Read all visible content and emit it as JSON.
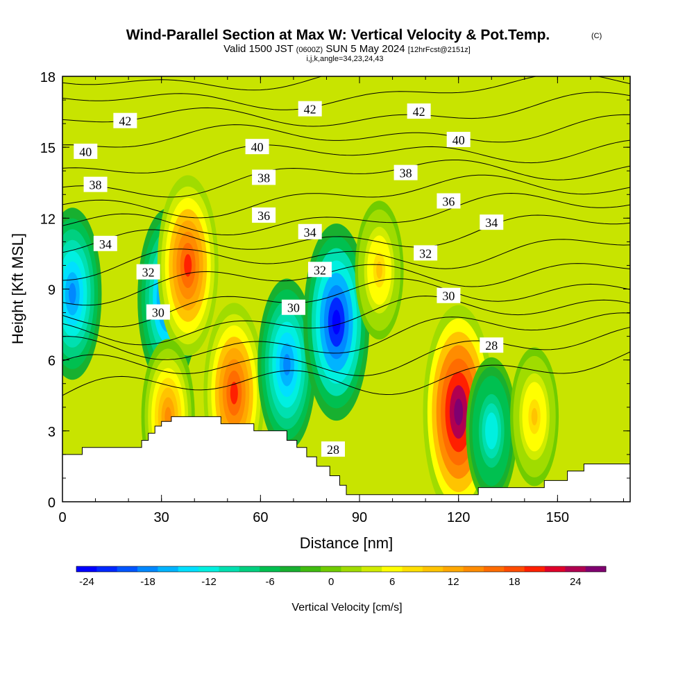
{
  "chart_data": {
    "type": "heatmap",
    "title": "Wind-Parallel Section at Max W: Vertical Velocity & Pot.Temp.",
    "copyright_mark": "(C)",
    "subtitle": {
      "valid": "Valid 1500 JST",
      "utc": "(0600Z)",
      "date": "SUN 5 May 2024",
      "forecast": "[12hrFcst@2151z]"
    },
    "section_info": "i,j,k,angle=34,23,24,43",
    "xlabel": "Distance [nm]",
    "ylabel": "Height [Kft MSL]",
    "xlim": [
      0,
      172
    ],
    "ylim": [
      0,
      18
    ],
    "x_ticks": [
      "0",
      "30",
      "60",
      "90",
      "120",
      "150"
    ],
    "y_ticks": [
      "0",
      "3",
      "6",
      "9",
      "12",
      "15",
      "18"
    ],
    "colorbar": {
      "label": "Vertical Velocity [cm/s]",
      "tick_labels": [
        "-24",
        "-18",
        "-12",
        "-6",
        "0",
        "6",
        "12",
        "18",
        "24"
      ],
      "levels_min": -24,
      "levels_max": 28,
      "colors": [
        "#0000ff",
        "#0028ff",
        "#0055ff",
        "#0088ff",
        "#00b4ff",
        "#00e0ff",
        "#00f0e0",
        "#00e0b0",
        "#00d080",
        "#00c050",
        "#18b030",
        "#40bc10",
        "#70cc00",
        "#a0dc00",
        "#d0ec00",
        "#ffff00",
        "#ffe000",
        "#ffc400",
        "#ffa800",
        "#ff8c00",
        "#ff6c00",
        "#ff4c00",
        "#ff2000",
        "#e0002a",
        "#b00050",
        "#800070"
      ]
    },
    "terrain_profile": [
      [
        0,
        2.0
      ],
      [
        6,
        2.0
      ],
      [
        6,
        2.3
      ],
      [
        24,
        2.3
      ],
      [
        24,
        2.6
      ],
      [
        26,
        2.6
      ],
      [
        26,
        2.9
      ],
      [
        28,
        2.9
      ],
      [
        28,
        3.2
      ],
      [
        30,
        3.2
      ],
      [
        30,
        3.4
      ],
      [
        33,
        3.4
      ],
      [
        33,
        3.6
      ],
      [
        48,
        3.6
      ],
      [
        48,
        3.3
      ],
      [
        58,
        3.3
      ],
      [
        58,
        3.0
      ],
      [
        68,
        3.0
      ],
      [
        68,
        2.6
      ],
      [
        71,
        2.6
      ],
      [
        71,
        2.3
      ],
      [
        74,
        2.3
      ],
      [
        74,
        1.9
      ],
      [
        77,
        1.9
      ],
      [
        77,
        1.5
      ],
      [
        81,
        1.5
      ],
      [
        81,
        1.1
      ],
      [
        84,
        1.1
      ],
      [
        84,
        0.7
      ],
      [
        86,
        0.7
      ],
      [
        86,
        0.3
      ],
      [
        126,
        0.3
      ],
      [
        126,
        0.6
      ],
      [
        146,
        0.6
      ],
      [
        146,
        0.9
      ],
      [
        153,
        0.9
      ],
      [
        153,
        1.3
      ],
      [
        158,
        1.3
      ],
      [
        158,
        1.6
      ],
      [
        172,
        1.6
      ]
    ],
    "vertical_velocity_features": [
      {
        "x": 3,
        "y": 8.8,
        "w_cm_s": -18
      },
      {
        "x": 32,
        "y": 8.6,
        "w_cm_s": -20
      },
      {
        "x": 38,
        "y": 10.0,
        "w_cm_s": 20
      },
      {
        "x": 52,
        "y": 4.6,
        "w_cm_s": 20
      },
      {
        "x": 68,
        "y": 5.8,
        "w_cm_s": -18
      },
      {
        "x": 83,
        "y": 7.6,
        "w_cm_s": -24
      },
      {
        "x": 96,
        "y": 9.8,
        "w_cm_s": 10
      },
      {
        "x": 120,
        "y": 3.8,
        "w_cm_s": 28
      },
      {
        "x": 130,
        "y": 3.0,
        "w_cm_s": -12
      },
      {
        "x": 143,
        "y": 3.6,
        "w_cm_s": 10
      },
      {
        "x": 32,
        "y": 3.6,
        "w_cm_s": 14
      }
    ],
    "theta_contours_kelvin_offset": [
      28,
      29,
      30,
      31,
      32,
      33,
      34,
      35,
      36,
      37,
      38,
      39,
      40,
      41,
      42,
      43
    ],
    "contour_labels": [
      {
        "text": "42",
        "x": 19,
        "y": 16.1
      },
      {
        "text": "42",
        "x": 75,
        "y": 16.6
      },
      {
        "text": "42",
        "x": 108,
        "y": 16.5
      },
      {
        "text": "40",
        "x": 7,
        "y": 14.8
      },
      {
        "text": "40",
        "x": 59,
        "y": 15.0
      },
      {
        "text": "40",
        "x": 120,
        "y": 15.3
      },
      {
        "text": "38",
        "x": 10,
        "y": 13.4
      },
      {
        "text": "38",
        "x": 61,
        "y": 13.7
      },
      {
        "text": "38",
        "x": 104,
        "y": 13.9
      },
      {
        "text": "36",
        "x": 61,
        "y": 12.1
      },
      {
        "text": "36",
        "x": 117,
        "y": 12.7
      },
      {
        "text": "34",
        "x": 13,
        "y": 10.9
      },
      {
        "text": "34",
        "x": 75,
        "y": 11.4
      },
      {
        "text": "34",
        "x": 130,
        "y": 11.8
      },
      {
        "text": "32",
        "x": 26,
        "y": 9.7
      },
      {
        "text": "32",
        "x": 78,
        "y": 9.8
      },
      {
        "text": "32",
        "x": 110,
        "y": 10.5
      },
      {
        "text": "30",
        "x": 29,
        "y": 8.0
      },
      {
        "text": "30",
        "x": 70,
        "y": 8.2
      },
      {
        "text": "30",
        "x": 117,
        "y": 8.7
      },
      {
        "text": "28",
        "x": 82,
        "y": 2.2
      },
      {
        "text": "28",
        "x": 130,
        "y": 6.6
      }
    ]
  }
}
